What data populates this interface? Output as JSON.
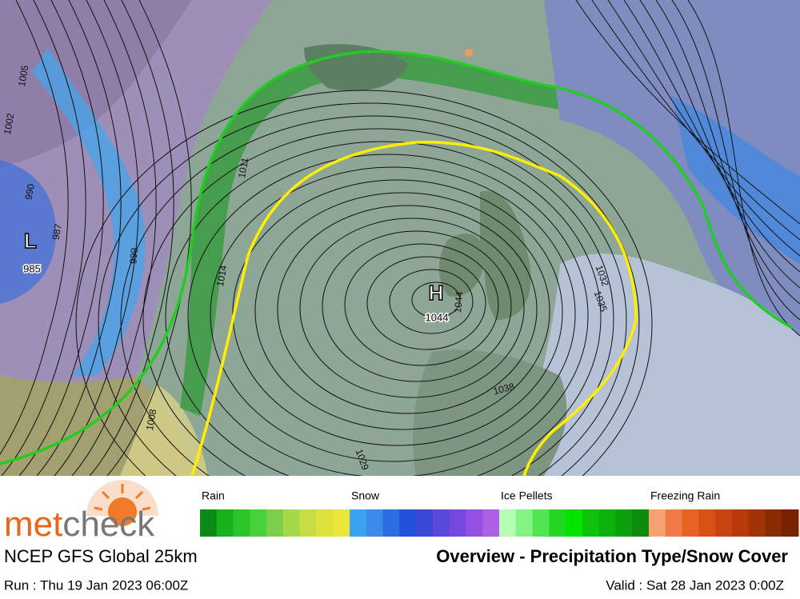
{
  "logo": {
    "part1": "met",
    "part2": "check"
  },
  "legend": {
    "groups": [
      {
        "name": "Rain",
        "colors": [
          "#0c8a18",
          "#16b21c",
          "#2bc52a",
          "#48d23a",
          "#7ccf48",
          "#a4d94a",
          "#c6de42",
          "#dfe23c",
          "#ece63a"
        ]
      },
      {
        "name": "Snow",
        "colors": [
          "#3aa4f2",
          "#3a8ce8",
          "#2a6ee2",
          "#2252da",
          "#3a48d8",
          "#5848dc",
          "#7648e0",
          "#9450e2",
          "#ac5ee4"
        ]
      },
      {
        "name": "Ice Pellets",
        "colors": [
          "#b4ffb4",
          "#84f284",
          "#52e452",
          "#22d822",
          "#00e400",
          "#0cc40c",
          "#0cb20c",
          "#0ca00c",
          "#0c8c0c"
        ]
      },
      {
        "name": "Freezing Rain",
        "colors": [
          "#f8a274",
          "#f27a44",
          "#e86224",
          "#d85214",
          "#c84410",
          "#b83a0a",
          "#a03204",
          "#8a2a02",
          "#782200"
        ]
      }
    ]
  },
  "footer": {
    "model": "NCEP GFS Global 25km",
    "title": "Overview - Precipitation Type/Snow Cover",
    "run": "Run : Thu 19 Jan 2023 06:00Z",
    "valid": "Valid : Sat 28 Jan 2023 0:00Z"
  },
  "map": {
    "labels": [
      "1005",
      "1002",
      "990",
      "987",
      "L",
      "985",
      "999",
      "1011",
      "1014",
      "1008",
      "H",
      "1044",
      "1044",
      "1038",
      "1032",
      "1035",
      "1029"
    ]
  }
}
